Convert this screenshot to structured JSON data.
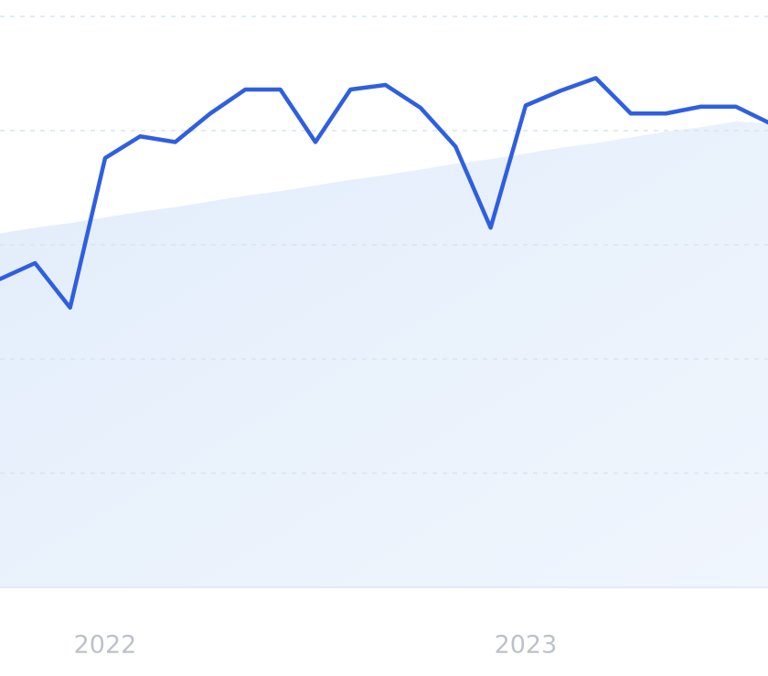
{
  "chart_data": {
    "type": "line",
    "categories": [
      null,
      null,
      null,
      "2022",
      null,
      null,
      null,
      null,
      null,
      null,
      null,
      null,
      null,
      null,
      null,
      "2023",
      null,
      null,
      null,
      null,
      null,
      null,
      null
    ],
    "series": [
      {
        "type": "area",
        "color": "#e4eefb",
        "values": [
          3.1,
          3.15,
          3.19,
          3.24,
          3.29,
          3.33,
          3.38,
          3.43,
          3.47,
          3.52,
          3.57,
          3.61,
          3.66,
          3.71,
          3.75,
          3.8,
          3.85,
          3.89,
          3.94,
          3.99,
          4.03,
          4.08,
          4.06
        ]
      },
      {
        "type": "line",
        "color": "#2f5fe0",
        "values": [
          2.7,
          2.84,
          2.45,
          3.76,
          3.95,
          3.9,
          4.15,
          4.36,
          4.36,
          3.9,
          4.36,
          4.4,
          4.2,
          3.86,
          3.15,
          4.22,
          4.35,
          4.46,
          4.15,
          4.15,
          4.21,
          4.21,
          4.06
        ]
      }
    ],
    "ylim": [
      0,
      5
    ],
    "yticks": [
      0,
      1,
      2,
      3,
      4,
      5
    ],
    "grid": true
  }
}
